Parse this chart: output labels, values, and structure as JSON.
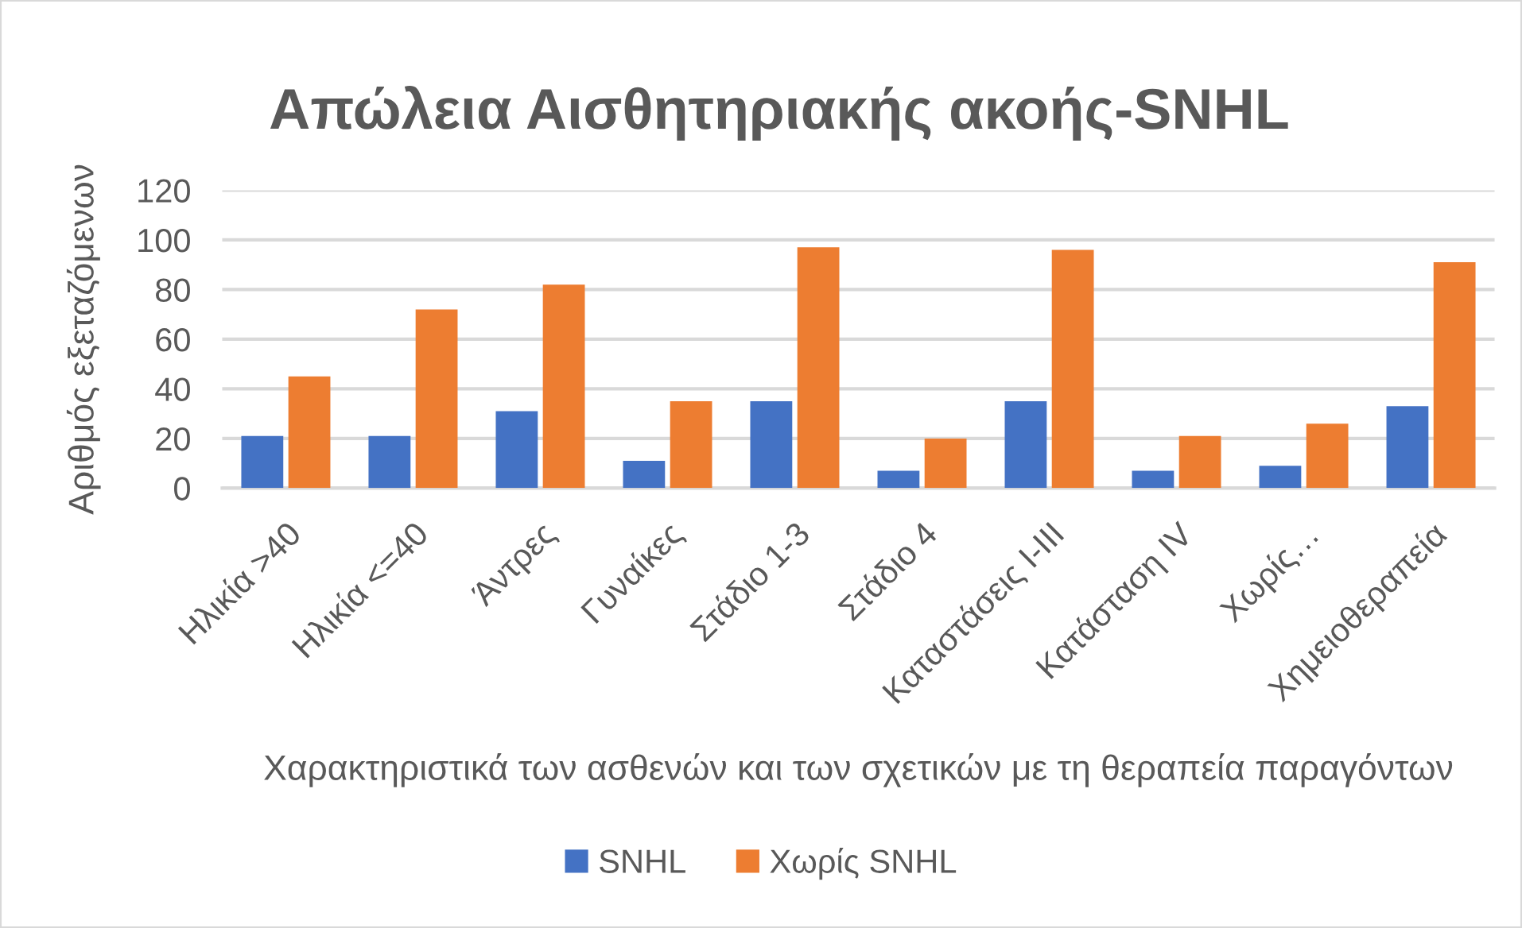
{
  "chart_data": {
    "type": "bar",
    "title": "Απώλεια Αισθητηριακής ακοής-SNHL",
    "xlabel": "Χαρακτηριστικά των ασθενών και των σχετικών με τη θεραπεία παραγόντων",
    "ylabel": "Αριθμός εξεταζόμενων",
    "categories": [
      "Ηλικία >40",
      "Ηλικία <=40",
      "Άντρες",
      "Γυναίκες",
      "Στάδιο 1-3",
      "Στάδιο 4",
      "Καταστάσεις I-III",
      "Κατάσταση IV",
      "Χωρίς…",
      "Χημειοθεραπεία"
    ],
    "series": [
      {
        "name": "SNHL",
        "color": "#4472c4",
        "values": [
          21,
          21,
          31,
          11,
          35,
          7,
          35,
          7,
          9,
          33
        ]
      },
      {
        "name": "Χωρίς SNHL",
        "color": "#ed7d31",
        "values": [
          45,
          72,
          82,
          35,
          97,
          20,
          96,
          21,
          26,
          91
        ]
      }
    ],
    "ylim": [
      0,
      120
    ],
    "yticks": [
      0,
      20,
      40,
      60,
      80,
      100,
      120
    ],
    "grid": "y",
    "legend": "bottom"
  }
}
